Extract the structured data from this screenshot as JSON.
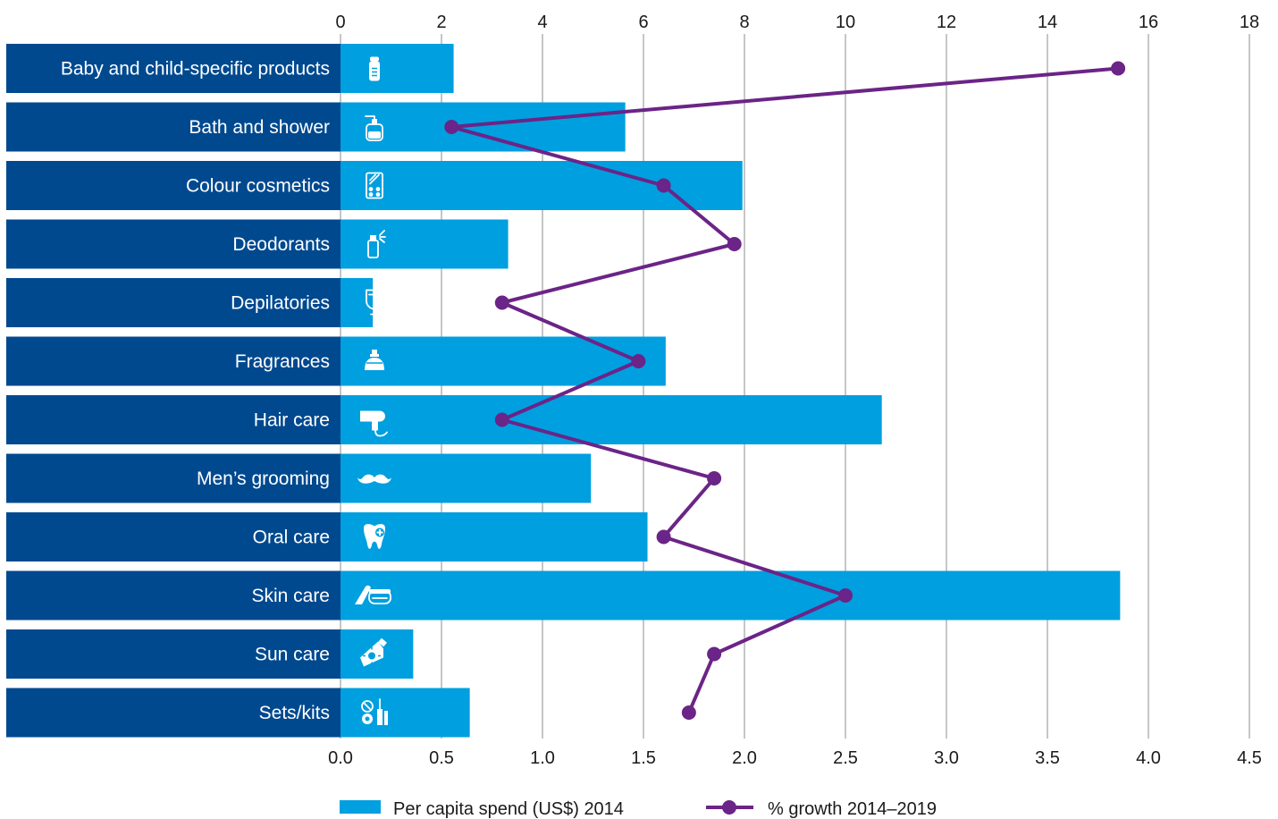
{
  "chart_data": {
    "type": "bar",
    "orientation": "horizontal",
    "categories": [
      "Baby and child-specific products",
      "Bath and shower",
      "Colour cosmetics",
      "Deodorants",
      "Depilatories",
      "Fragrances",
      "Hair care",
      "Men’s grooming",
      "Oral care",
      "Skin care",
      "Sun care",
      "Sets/kits"
    ],
    "category_icons": [
      "baby-bottle-icon",
      "soap-dispenser-icon",
      "makeup-palette-icon",
      "spray-can-icon",
      "depilatory-tube-icon",
      "perfume-bottle-icon",
      "hair-dryer-icon",
      "moustache-icon",
      "tooth-icon",
      "cream-jar-icon",
      "sunscreen-icon",
      "makeup-kit-icon"
    ],
    "series": [
      {
        "name": "Per capita spend (US$) 2014",
        "type": "bar",
        "axis": "bottom",
        "color": "#009fdf",
        "values": [
          0.56,
          1.41,
          1.99,
          0.83,
          0.16,
          1.61,
          2.68,
          1.24,
          1.52,
          3.86,
          0.36,
          0.64
        ]
      },
      {
        "name": "% growth 2014–2019",
        "type": "line",
        "axis": "top",
        "color": "#6b2487",
        "values": [
          15.4,
          2.2,
          6.4,
          7.8,
          3.2,
          5.9,
          3.2,
          7.4,
          6.4,
          10.0,
          7.4,
          6.9
        ]
      }
    ],
    "x_bottom": {
      "ticks": [
        "0.0",
        "0.5",
        "1.0",
        "1.5",
        "2.0",
        "2.5",
        "3.0",
        "3.5",
        "4.0",
        "4.5"
      ],
      "range": [
        0,
        4.5
      ]
    },
    "x_top": {
      "ticks": [
        "0",
        "2",
        "4",
        "6",
        "8",
        "10",
        "12",
        "14",
        "16",
        "18"
      ],
      "range": [
        0,
        18
      ]
    },
    "category_band_color": "#00498f",
    "grid": true,
    "legend_position": "bottom"
  }
}
